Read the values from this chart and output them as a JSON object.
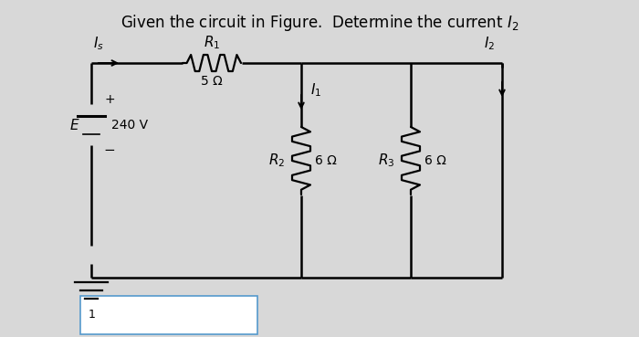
{
  "bg_color": "#d8d8d8",
  "lw_wire": 1.8,
  "lw_res": 1.6,
  "color": "black",
  "title": "Given the circuit in Figure.  Determine the current $I_2$",
  "title_fontsize": 12,
  "Is_label": "$I_s$",
  "I1_label": "$I_1$",
  "I2_label": "$I_2$",
  "R1_label": "$R_1$",
  "R1_val": "5 Ω",
  "R2_label": "$R_2$",
  "R2_val": "6 Ω",
  "R3_label": "$R_3$",
  "R3_val": "6 Ω",
  "E_label": "$E$",
  "E_val": "240 V",
  "plus": "+",
  "minus": "−"
}
